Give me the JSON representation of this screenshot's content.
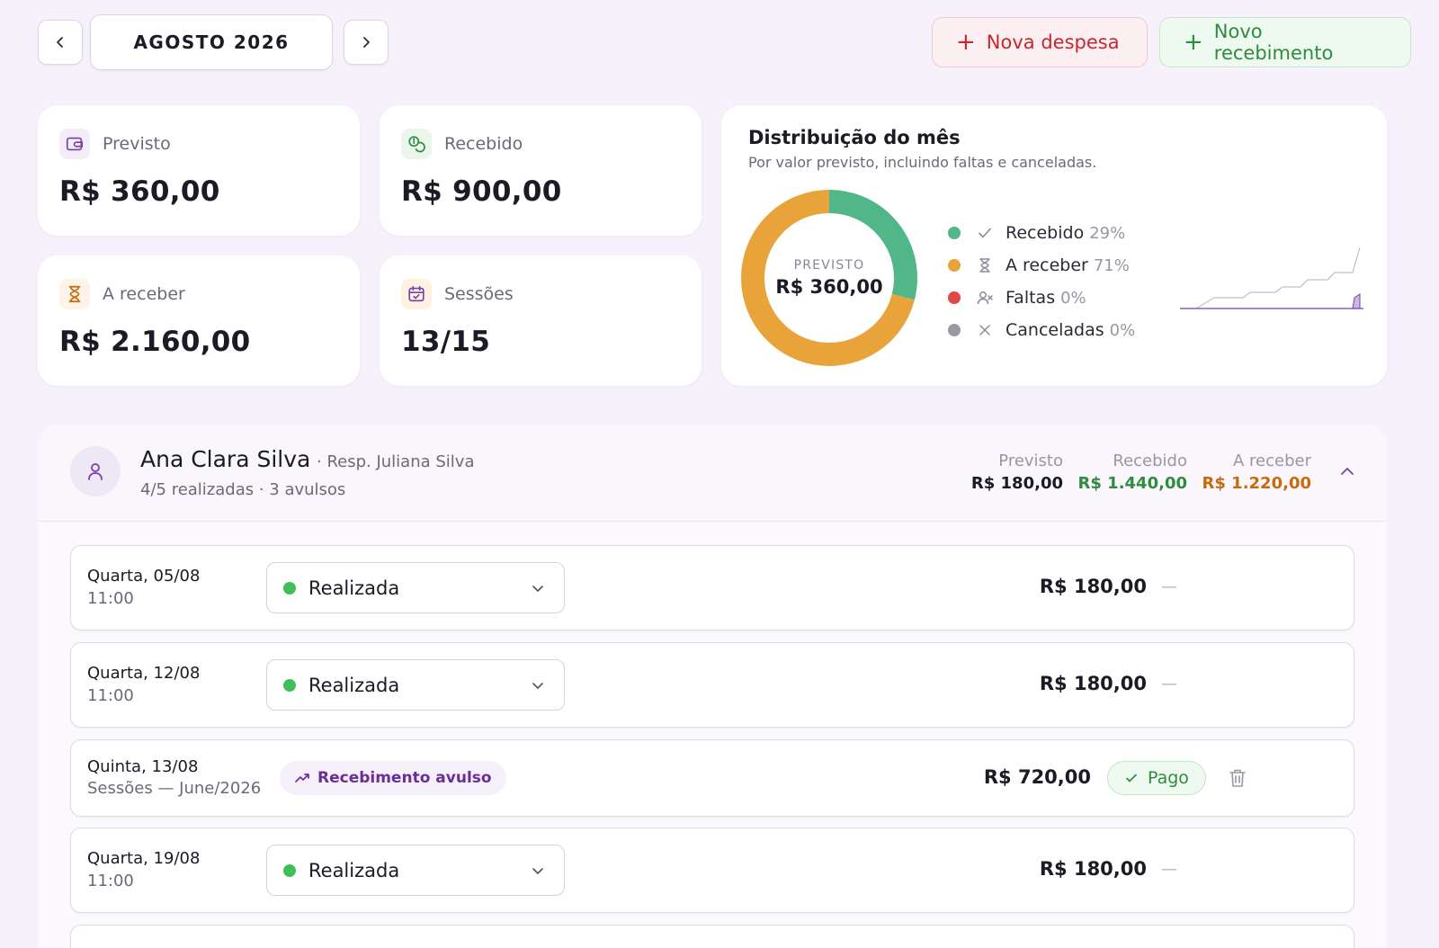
{
  "header": {
    "month": "AGOSTO 2026",
    "nova_despesa": "Nova despesa",
    "novo_recebimento": "Novo recebimento"
  },
  "stats": {
    "previsto": {
      "label": "Previsto",
      "value": "R$ 360,00"
    },
    "recebido": {
      "label": "Recebido",
      "value": "R$ 900,00"
    },
    "a_receber": {
      "label": "A receber",
      "value": "R$ 2.160,00"
    },
    "sessoes": {
      "label": "Sessões",
      "value": "13/15"
    }
  },
  "distribution": {
    "title": "Distribuição do mês",
    "subtitle": "Por valor previsto, incluindo faltas e canceladas.",
    "center_caption": "PREVISTO",
    "center_value": "R$ 360,00",
    "legend": [
      {
        "name": "Recebido",
        "pct": "29%",
        "color": "#52b788",
        "icon": "check-icon"
      },
      {
        "name": "A receber",
        "pct": "71%",
        "color": "#e8a33a",
        "icon": "hourglass-icon"
      },
      {
        "name": "Faltas",
        "pct": "0%",
        "color": "#e04848",
        "icon": "user-x-icon"
      },
      {
        "name": "Canceladas",
        "pct": "0%",
        "color": "#9b98a3",
        "icon": "x-icon"
      }
    ]
  },
  "chart_data": {
    "type": "pie",
    "categories": [
      "Recebido",
      "A receber",
      "Faltas",
      "Canceladas"
    ],
    "values": [
      29,
      71,
      0,
      0
    ],
    "colors": [
      "#52b788",
      "#e8a33a",
      "#e04848",
      "#9b98a3"
    ]
  },
  "student": {
    "name": "Ana Clara Silva",
    "responsible": "· Resp. Juliana Silva",
    "subtitle": "4/5 realizadas · 3 avulsos",
    "summary": [
      {
        "label": "Previsto",
        "value": "R$ 180,00"
      },
      {
        "label": "Recebido",
        "value": "R$ 1.440,00"
      },
      {
        "label": "A receber",
        "value": "R$ 1.220,00"
      }
    ]
  },
  "sessions": [
    {
      "date": "Quarta, 05/08",
      "time": "11:00",
      "status": "Realizada",
      "amount": "R$ 180,00",
      "dash": "—"
    },
    {
      "date": "Quarta, 12/08",
      "time": "11:00",
      "status": "Realizada",
      "amount": "R$ 180,00",
      "dash": "—"
    },
    {
      "date": "Quinta, 13/08",
      "detail": "Sessões — June/2026",
      "tag": "Recebimento avulso",
      "amount": "R$ 720,00",
      "badge": "Pago"
    },
    {
      "date": "Quarta, 19/08",
      "time": "11:00",
      "status": "Realizada",
      "amount": "R$ 180,00",
      "dash": "—"
    }
  ]
}
